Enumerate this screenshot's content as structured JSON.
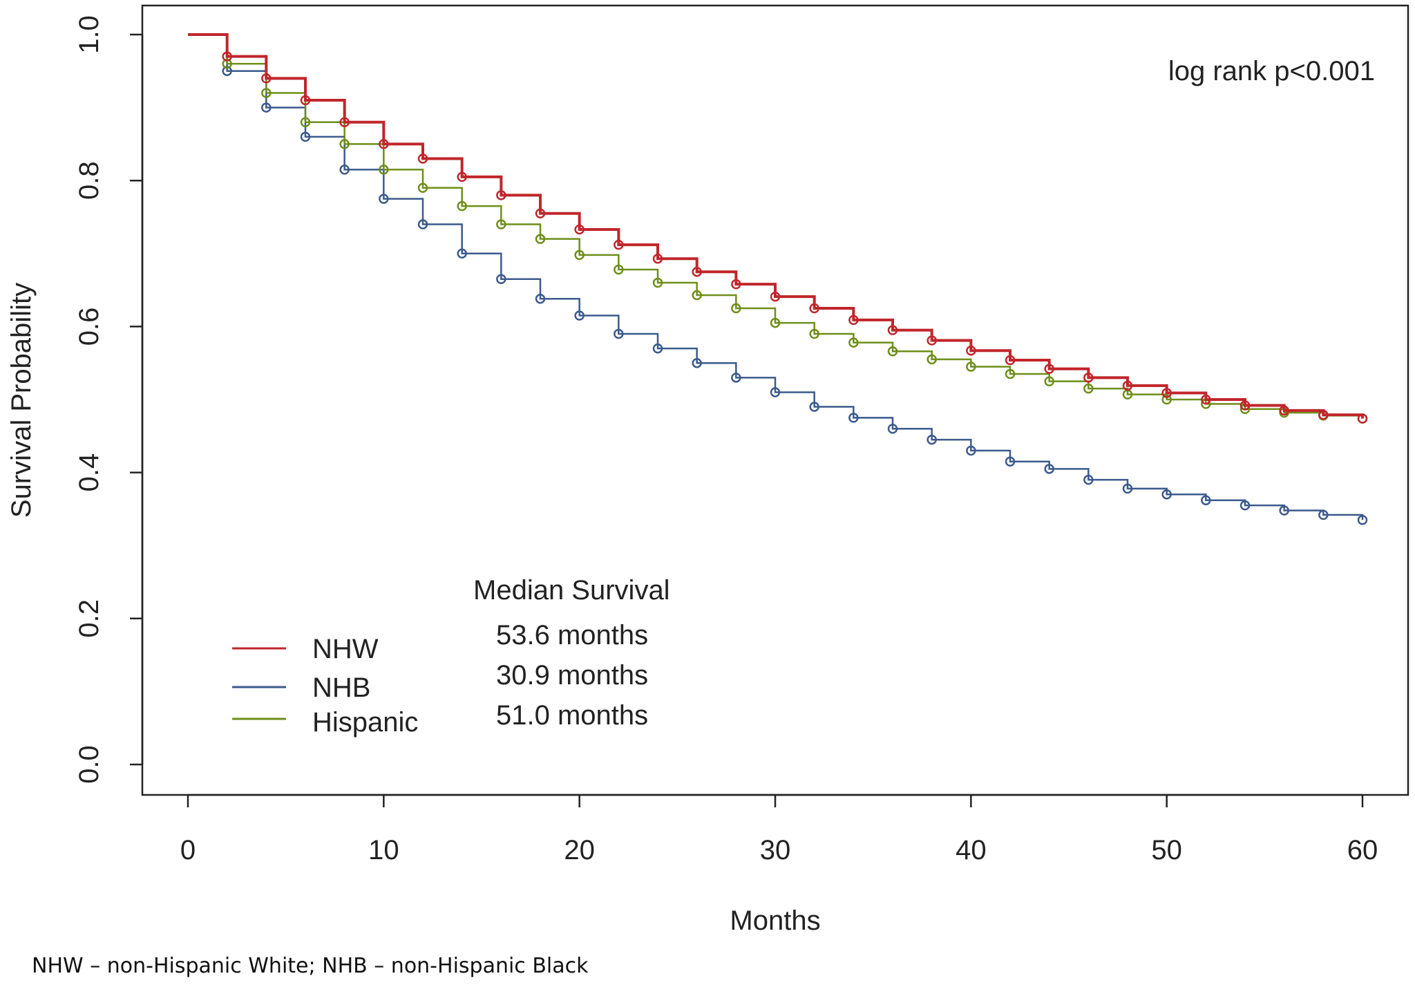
{
  "chart_data": {
    "type": "line",
    "ylabel": "Survival Probability",
    "xlabel": "Months",
    "xlim": [
      0,
      60
    ],
    "ylim": [
      0,
      1
    ],
    "xticks": [
      0,
      10,
      20,
      30,
      40,
      50,
      60
    ],
    "yticks": [
      "0.0",
      "0.2",
      "0.4",
      "0.6",
      "0.8",
      "1.0"
    ],
    "annotation": "log rank p<0.001",
    "median_title": "Median Survival",
    "grid": false,
    "legend_position": "bottom-left",
    "series": [
      {
        "name": "NHW",
        "color": "#c0262b",
        "median": "53.6 months",
        "x": [
          0,
          2,
          4,
          6,
          8,
          10,
          12,
          14,
          16,
          18,
          20,
          22,
          24,
          26,
          28,
          30,
          32,
          34,
          36,
          38,
          40,
          42,
          44,
          46,
          48,
          50,
          52,
          54,
          56,
          58,
          60
        ],
        "y": [
          1.0,
          0.97,
          0.94,
          0.91,
          0.88,
          0.85,
          0.83,
          0.805,
          0.78,
          0.755,
          0.733,
          0.712,
          0.693,
          0.675,
          0.658,
          0.641,
          0.625,
          0.609,
          0.595,
          0.581,
          0.567,
          0.554,
          0.542,
          0.53,
          0.519,
          0.509,
          0.5,
          0.492,
          0.485,
          0.479,
          0.474
        ]
      },
      {
        "name": "NHB",
        "color": "#3b5a8c",
        "median": "30.9 months",
        "x": [
          0,
          2,
          4,
          6,
          8,
          10,
          12,
          14,
          16,
          18,
          20,
          22,
          24,
          26,
          28,
          30,
          32,
          34,
          36,
          38,
          40,
          42,
          44,
          46,
          48,
          50,
          52,
          54,
          56,
          58,
          60
        ],
        "y": [
          1.0,
          0.95,
          0.9,
          0.86,
          0.815,
          0.775,
          0.74,
          0.7,
          0.665,
          0.638,
          0.615,
          0.59,
          0.57,
          0.55,
          0.53,
          0.51,
          0.49,
          0.475,
          0.46,
          0.445,
          0.43,
          0.415,
          0.405,
          0.39,
          0.378,
          0.37,
          0.362,
          0.355,
          0.348,
          0.342,
          0.335
        ]
      },
      {
        "name": "Hispanic",
        "color": "#6e8e1a",
        "median": "51.0 months",
        "x": [
          0,
          2,
          4,
          6,
          8,
          10,
          12,
          14,
          16,
          18,
          20,
          22,
          24,
          26,
          28,
          30,
          32,
          34,
          36,
          38,
          40,
          42,
          44,
          46,
          48,
          50,
          52,
          54,
          56,
          58,
          60
        ],
        "y": [
          1.0,
          0.96,
          0.92,
          0.88,
          0.85,
          0.815,
          0.79,
          0.765,
          0.74,
          0.72,
          0.698,
          0.678,
          0.66,
          0.643,
          0.625,
          0.605,
          0.59,
          0.578,
          0.566,
          0.555,
          0.545,
          0.535,
          0.525,
          0.515,
          0.507,
          0.5,
          0.494,
          0.487,
          0.482,
          0.478,
          0.474
        ]
      }
    ]
  },
  "footnote": "NHW – non-Hispanic White; NHB – non-Hispanic Black"
}
